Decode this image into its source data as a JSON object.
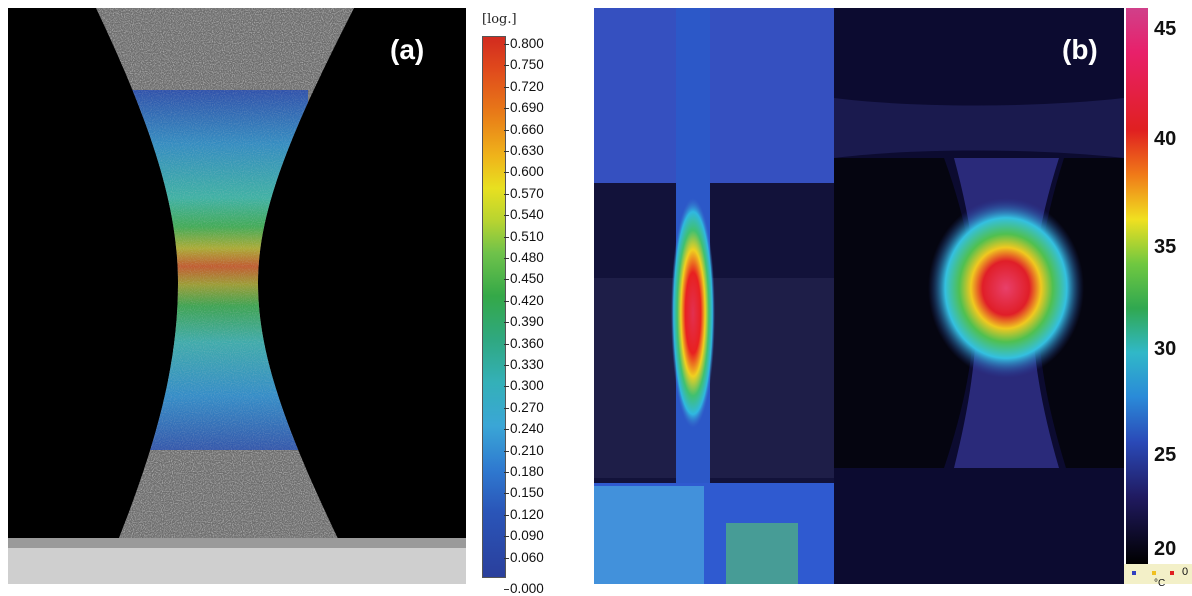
{
  "panel_a": {
    "label": "(a)",
    "colorbar": {
      "unit": "[log.]",
      "ticks": [
        "0.800",
        "0.750",
        "0.720",
        "0.690",
        "0.660",
        "0.630",
        "0.600",
        "0.570",
        "0.540",
        "0.510",
        "0.480",
        "0.450",
        "0.420",
        "0.390",
        "0.360",
        "0.330",
        "0.300",
        "0.270",
        "0.240",
        "0.210",
        "0.180",
        "0.150",
        "0.120",
        "0.090",
        "0.060",
        "0.000"
      ]
    }
  },
  "panel_b": {
    "label": "(b)",
    "colorbar": {
      "ticks": [
        "45",
        "40",
        "35",
        "30",
        "25",
        "20"
      ],
      "zero": "0",
      "unit": "°C"
    }
  }
}
